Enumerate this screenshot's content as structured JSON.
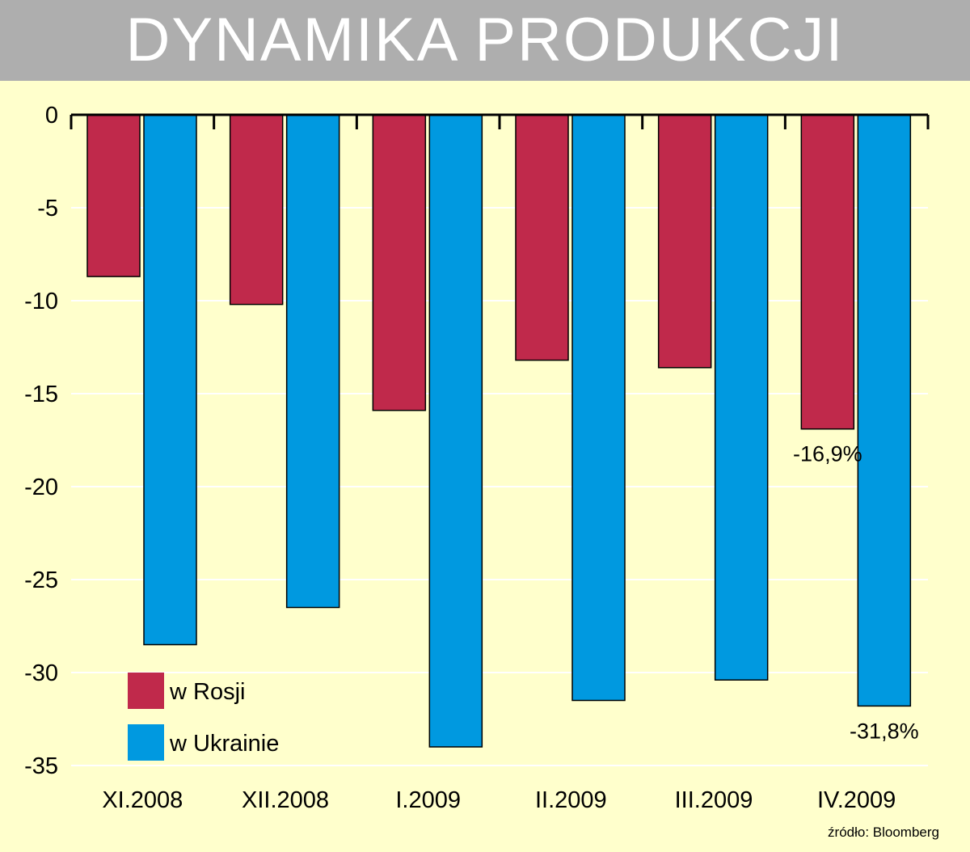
{
  "chart_data": {
    "type": "bar",
    "title": "DYNAMIKA PRODUKCJI",
    "categories": [
      "XI.2008",
      "XII.2008",
      "I.2009",
      "II.2009",
      "III.2009",
      "IV.2009"
    ],
    "series": [
      {
        "name": "w Rosji",
        "color": "#c0294b",
        "values": [
          -8.7,
          -10.2,
          -15.9,
          -13.2,
          -13.6,
          -16.9
        ]
      },
      {
        "name": "w Ukrainie",
        "color": "#0099e0",
        "values": [
          -28.5,
          -26.5,
          -34.0,
          -31.5,
          -30.4,
          -31.8
        ]
      }
    ],
    "ylim": [
      -35,
      0
    ],
    "yticks": [
      0,
      -5,
      -10,
      -15,
      -20,
      -25,
      -30,
      -35
    ],
    "grid": true,
    "annotations": [
      {
        "series": 0,
        "index": 5,
        "text": "-16,9%"
      },
      {
        "series": 1,
        "index": 5,
        "text": "-31,8%"
      }
    ],
    "legend_position": "bottom-left"
  },
  "source": "źródło: Bloomberg"
}
